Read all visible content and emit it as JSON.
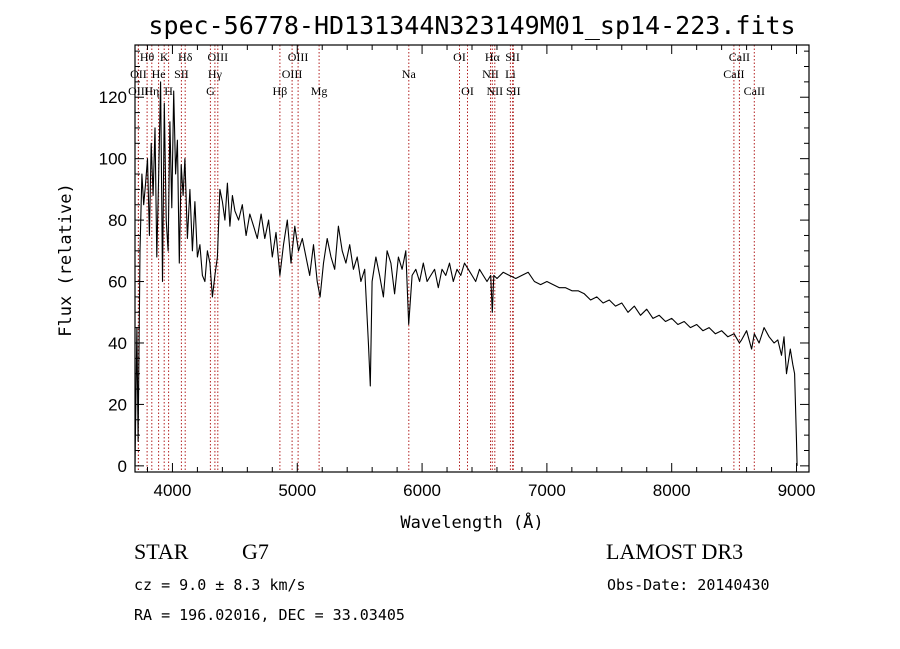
{
  "chart_data": {
    "type": "line",
    "title": "spec-56778-HD131344N323149M01_sp14-223.fits",
    "xlabel": "Wavelength (Å)",
    "ylabel": "Flux (relative)",
    "xlim": [
      3700,
      9100
    ],
    "ylim": [
      -2,
      137
    ],
    "xticks": [
      4000,
      5000,
      6000,
      7000,
      8000,
      9000
    ],
    "yticks": [
      0,
      20,
      40,
      60,
      80,
      100,
      120
    ],
    "series": [
      {
        "name": "spectrum",
        "x": [
          3700,
          3715,
          3725,
          3740,
          3755,
          3770,
          3785,
          3800,
          3815,
          3830,
          3845,
          3860,
          3875,
          3890,
          3905,
          3920,
          3935,
          3950,
          3965,
          3980,
          3995,
          4010,
          4025,
          4040,
          4055,
          4070,
          4085,
          4100,
          4120,
          4140,
          4160,
          4180,
          4200,
          4220,
          4240,
          4260,
          4280,
          4300,
          4320,
          4340,
          4360,
          4380,
          4400,
          4420,
          4440,
          4460,
          4480,
          4500,
          4530,
          4560,
          4590,
          4620,
          4650,
          4680,
          4710,
          4740,
          4770,
          4800,
          4830,
          4861,
          4890,
          4920,
          4950,
          4980,
          5010,
          5040,
          5070,
          5100,
          5130,
          5160,
          5183,
          5210,
          5240,
          5270,
          5300,
          5330,
          5360,
          5390,
          5420,
          5450,
          5480,
          5510,
          5540,
          5570,
          5585,
          5600,
          5630,
          5660,
          5690,
          5720,
          5750,
          5780,
          5810,
          5840,
          5870,
          5893,
          5920,
          5950,
          5980,
          6010,
          6040,
          6070,
          6100,
          6130,
          6160,
          6190,
          6220,
          6250,
          6280,
          6310,
          6340,
          6370,
          6400,
          6430,
          6460,
          6490,
          6520,
          6550,
          6563,
          6575,
          6600,
          6650,
          6700,
          6750,
          6800,
          6850,
          6900,
          6950,
          7000,
          7050,
          7100,
          7150,
          7200,
          7250,
          7300,
          7350,
          7400,
          7450,
          7500,
          7550,
          7600,
          7650,
          7700,
          7750,
          7800,
          7850,
          7900,
          7950,
          8000,
          8050,
          8100,
          8150,
          8200,
          8250,
          8300,
          8350,
          8400,
          8450,
          8500,
          8542,
          8560,
          8600,
          8640,
          8662,
          8700,
          8740,
          8780,
          8820,
          8850,
          8880,
          8900,
          8920,
          8950,
          8970,
          8985,
          9000,
          9005
        ],
        "values": [
          0,
          45,
          8,
          70,
          95,
          85,
          92,
          100,
          75,
          105,
          88,
          110,
          68,
          95,
          125,
          60,
          118,
          80,
          70,
          112,
          84,
          122,
          95,
          106,
          66,
          98,
          88,
          100,
          74,
          90,
          70,
          86,
          68,
          72,
          62,
          60,
          70,
          66,
          55,
          62,
          68,
          90,
          86,
          80,
          92,
          78,
          88,
          83,
          80,
          85,
          75,
          82,
          78,
          74,
          82,
          74,
          80,
          68,
          76,
          62,
          72,
          80,
          66,
          78,
          70,
          74,
          68,
          62,
          72,
          60,
          55,
          66,
          74,
          68,
          64,
          78,
          70,
          66,
          72,
          64,
          68,
          60,
          64,
          40,
          26,
          60,
          68,
          62,
          55,
          70,
          66,
          56,
          68,
          64,
          70,
          46,
          62,
          64,
          60,
          66,
          60,
          62,
          64,
          58,
          64,
          62,
          66,
          60,
          64,
          62,
          66,
          64,
          62,
          60,
          64,
          62,
          60,
          62,
          50,
          62,
          61,
          63,
          62,
          61,
          62,
          63,
          60,
          59,
          60,
          59,
          58,
          58,
          57,
          57,
          56,
          54,
          55,
          53,
          54,
          52,
          53,
          50,
          52,
          49,
          51,
          48,
          49,
          47,
          48,
          46,
          47,
          45,
          46,
          44,
          45,
          43,
          44,
          42,
          43,
          40,
          41,
          44,
          38,
          43,
          40,
          45,
          42,
          40,
          41,
          36,
          42,
          30,
          38,
          33,
          30,
          8,
          0
        ],
        "color": "#000000"
      }
    ],
    "line_markers": [
      {
        "label": "Hθ",
        "wavelength": 3797,
        "row": 1
      },
      {
        "label": "OII",
        "wavelength": 3727,
        "row": 2
      },
      {
        "label": "OIII",
        "wavelength": 3727,
        "row": 3
      },
      {
        "label": "He",
        "wavelength": 3889,
        "row": 2
      },
      {
        "label": "K",
        "wavelength": 3934,
        "row": 1
      },
      {
        "label": "Hη",
        "wavelength": 3835,
        "row": 3
      },
      {
        "label": "H",
        "wavelength": 3969,
        "row": 3
      },
      {
        "label": "Hδ",
        "wavelength": 4102,
        "row": 1
      },
      {
        "label": "SII",
        "wavelength": 4072,
        "row": 2
      },
      {
        "label": "OIII",
        "wavelength": 4363,
        "row": 1
      },
      {
        "label": "Hγ",
        "wavelength": 4340,
        "row": 2
      },
      {
        "label": "G",
        "wavelength": 4304,
        "row": 3
      },
      {
        "label": "Hβ",
        "wavelength": 4861,
        "row": 3
      },
      {
        "label": "OIII",
        "wavelength": 5007,
        "row": 1
      },
      {
        "label": "OIII",
        "wavelength": 4959,
        "row": 2
      },
      {
        "label": "Mg",
        "wavelength": 5175,
        "row": 3
      },
      {
        "label": "Na",
        "wavelength": 5894,
        "row": 2
      },
      {
        "label": "OI",
        "wavelength": 6300,
        "row": 1
      },
      {
        "label": "OI",
        "wavelength": 6364,
        "row": 3
      },
      {
        "label": "Hα",
        "wavelength": 6563,
        "row": 1
      },
      {
        "label": "SII",
        "wavelength": 6725,
        "row": 1
      },
      {
        "label": "NII",
        "wavelength": 6548,
        "row": 2
      },
      {
        "label": "Li",
        "wavelength": 6708,
        "row": 2
      },
      {
        "label": "NII",
        "wavelength": 6583,
        "row": 3
      },
      {
        "label": "SII",
        "wavelength": 6731,
        "row": 3
      },
      {
        "label": "CaII",
        "wavelength": 8542,
        "row": 1
      },
      {
        "label": "CaII",
        "wavelength": 8498,
        "row": 2
      },
      {
        "label": "CaII",
        "wavelength": 8662,
        "row": 3
      }
    ],
    "marker_color": "#b22222"
  },
  "info": {
    "class": "STAR",
    "subclass": "G7",
    "survey": "LAMOST DR3",
    "cz": "cz = 9.0 ± 8.3 km/s",
    "obs_date": "Obs-Date: 20140430",
    "coords": "RA = 196.02016, DEC =  33.03405"
  }
}
